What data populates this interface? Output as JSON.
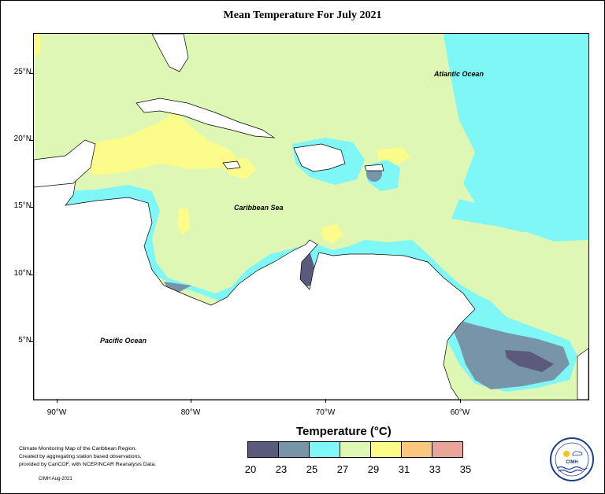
{
  "title": "Mean Temperature For July 2021",
  "map": {
    "latitude_labels": [
      "25°N",
      "20°N",
      "15°N",
      "10°N",
      "5°N"
    ],
    "longitude_labels": [
      "90°W",
      "80°W",
      "70°W",
      "60°W"
    ],
    "regions": {
      "atlantic": "Atlantic Ocean",
      "caribbean": "Caribbean Sea",
      "pacific": "Pacific Ocean"
    },
    "colors": {
      "land": "#ffffff",
      "t20_23": "#5b5a7c",
      "t23_25": "#7894a8",
      "t25_27": "#7ff7f7",
      "t27_29": "#dff7b4",
      "t29_31": "#fcfc8a",
      "t31_33": "#fbc87f",
      "t33_35": "#eaa59a"
    }
  },
  "legend": {
    "title": "Temperature (°C)",
    "labels": [
      "20",
      "23",
      "25",
      "27",
      "29",
      "31",
      "33",
      "35"
    ],
    "colors": [
      "#5b5a7c",
      "#7894a8",
      "#7ff7f7",
      "#dff7b4",
      "#fcfc8a",
      "#fbc87f",
      "#eaa59a"
    ]
  },
  "credits": {
    "line1": "Climate Monitoring Map of the Caribbean Region.",
    "line2": "Created by aggregating station based observations,",
    "line3": "provided by CariCOF, with NCEP/NCAR Reanalysis Data.",
    "cimh_credit": "CIMH Aug-2021"
  },
  "logo": {
    "text": "CIMH"
  }
}
